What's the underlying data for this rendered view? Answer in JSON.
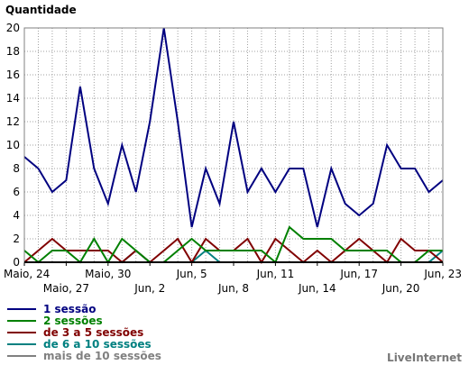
{
  "chart_data": {
    "type": "line",
    "title": "",
    "ylabel": "Quantidade",
    "xlabel": "",
    "ylim": [
      0,
      20
    ],
    "yticks": [
      0,
      2,
      4,
      6,
      8,
      10,
      12,
      14,
      16,
      18,
      20
    ],
    "grid": true,
    "legend_position": "bottom-left",
    "x_tick_labels": [
      {
        "day": 0,
        "label": "Maio, 24",
        "row": 1
      },
      {
        "day": 3,
        "label": "Maio, 27",
        "row": 2
      },
      {
        "day": 6,
        "label": "Maio, 30",
        "row": 1
      },
      {
        "day": 9,
        "label": "Jun, 2",
        "row": 2
      },
      {
        "day": 12,
        "label": "Jun, 5",
        "row": 1
      },
      {
        "day": 15,
        "label": "Jun, 8",
        "row": 2
      },
      {
        "day": 18,
        "label": "Jun, 11",
        "row": 1
      },
      {
        "day": 21,
        "label": "Jun, 14",
        "row": 2
      },
      {
        "day": 24,
        "label": "Jun, 17",
        "row": 1
      },
      {
        "day": 27,
        "label": "Jun, 20",
        "row": 2
      },
      {
        "day": 30,
        "label": "Jun, 23",
        "row": 1
      }
    ],
    "series": [
      {
        "name": "1 sessão",
        "color": "#000080",
        "values": [
          9,
          8,
          6,
          7,
          15,
          8,
          5,
          10,
          6,
          12,
          20,
          12,
          3,
          8,
          5,
          12,
          6,
          8,
          6,
          8,
          8,
          3,
          8,
          5,
          4,
          5,
          10,
          8,
          8,
          6,
          7
        ]
      },
      {
        "name": "2 sessões",
        "color": "#008000",
        "values": [
          1,
          0,
          1,
          1,
          0,
          2,
          0,
          2,
          1,
          0,
          0,
          1,
          2,
          1,
          1,
          1,
          1,
          1,
          0,
          3,
          2,
          2,
          2,
          1,
          1,
          1,
          1,
          0,
          0,
          1,
          1
        ]
      },
      {
        "name": "de 3 a 5 sessões",
        "color": "#800000",
        "values": [
          0,
          1,
          2,
          1,
          1,
          1,
          1,
          0,
          1,
          0,
          1,
          2,
          0,
          2,
          1,
          1,
          2,
          0,
          2,
          1,
          0,
          1,
          0,
          1,
          2,
          1,
          0,
          2,
          1,
          1,
          0
        ]
      },
      {
        "name": "de 6 a 10 sessões",
        "color": "#008080",
        "values": [
          0,
          0,
          0,
          0,
          0,
          0,
          0,
          0,
          1,
          0,
          0,
          0,
          0,
          1,
          0,
          0,
          0,
          0,
          0,
          0,
          0,
          0,
          0,
          0,
          0,
          0,
          0,
          0,
          0,
          0,
          1
        ]
      },
      {
        "name": "mais de 10 sessões",
        "color": "#808080",
        "values": [
          0,
          0,
          0,
          0,
          0,
          0,
          0,
          0,
          0,
          0,
          0,
          0,
          0,
          0,
          0,
          0,
          0,
          0,
          0,
          0,
          0,
          0,
          0,
          0,
          0,
          0,
          0,
          0,
          0,
          0,
          0
        ]
      }
    ]
  },
  "watermark": "LiveInternet"
}
